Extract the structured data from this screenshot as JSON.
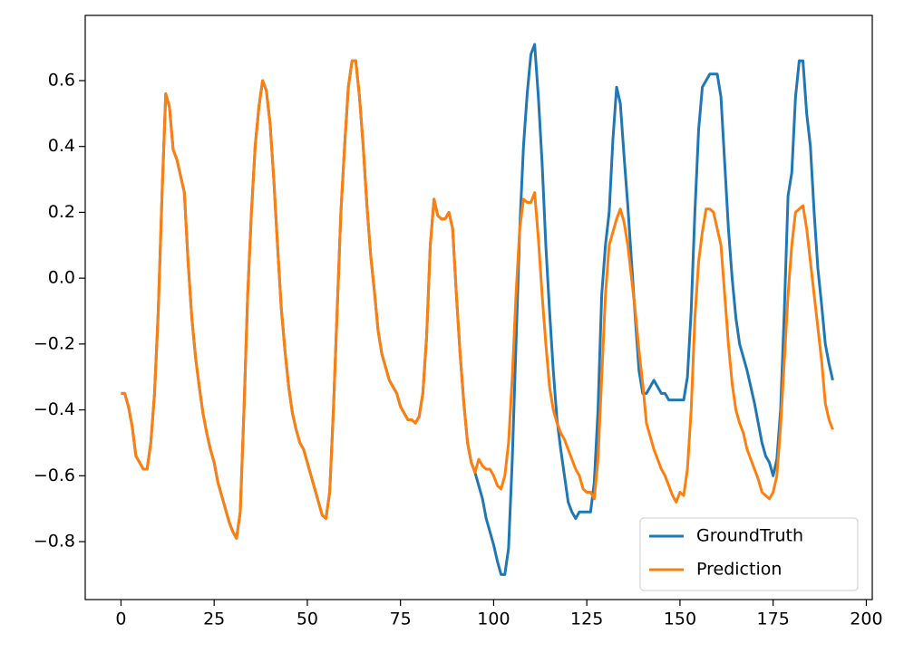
{
  "chart_data": {
    "type": "line",
    "x": [
      0,
      1,
      2,
      3,
      4,
      5,
      6,
      7,
      8,
      9,
      10,
      11,
      12,
      13,
      14,
      15,
      16,
      17,
      18,
      19,
      20,
      21,
      22,
      23,
      24,
      25,
      26,
      27,
      28,
      29,
      30,
      31,
      32,
      33,
      34,
      35,
      36,
      37,
      38,
      39,
      40,
      41,
      42,
      43,
      44,
      45,
      46,
      47,
      48,
      49,
      50,
      51,
      52,
      53,
      54,
      55,
      56,
      57,
      58,
      59,
      60,
      61,
      62,
      63,
      64,
      65,
      66,
      67,
      68,
      69,
      70,
      71,
      72,
      73,
      74,
      75,
      76,
      77,
      78,
      79,
      80,
      81,
      82,
      83,
      84,
      85,
      86,
      87,
      88,
      89,
      90,
      91,
      92,
      93,
      94,
      95,
      96,
      97,
      98,
      99,
      100,
      101,
      102,
      103,
      104,
      105,
      106,
      107,
      108,
      109,
      110,
      111,
      112,
      113,
      114,
      115,
      116,
      117,
      118,
      119,
      120,
      121,
      122,
      123,
      124,
      125,
      126,
      127,
      128,
      129,
      130,
      131,
      132,
      133,
      134,
      135,
      136,
      137,
      138,
      139,
      140,
      141,
      142,
      143,
      144,
      145,
      146,
      147,
      148,
      149,
      150,
      151,
      152,
      153,
      154,
      155,
      156,
      157,
      158,
      159,
      160,
      161,
      162,
      163,
      164,
      165,
      166,
      167,
      168,
      169,
      170,
      171,
      172,
      173,
      174,
      175,
      176,
      177,
      178,
      179,
      180,
      181,
      182,
      183,
      184,
      185,
      186,
      187,
      188,
      189,
      190,
      191
    ],
    "series": [
      {
        "name": "GroundTruth",
        "color": "#1f77b4",
        "values": [
          -0.35,
          -0.35,
          -0.39,
          -0.45,
          -0.54,
          -0.56,
          -0.58,
          -0.58,
          -0.5,
          -0.35,
          -0.1,
          0.25,
          0.56,
          0.52,
          0.39,
          0.36,
          0.31,
          0.26,
          0.05,
          -0.12,
          -0.24,
          -0.33,
          -0.41,
          -0.47,
          -0.52,
          -0.56,
          -0.62,
          -0.66,
          -0.7,
          -0.74,
          -0.77,
          -0.79,
          -0.71,
          -0.4,
          -0.05,
          0.2,
          0.4,
          0.52,
          0.6,
          0.57,
          0.47,
          0.3,
          0.1,
          -0.09,
          -0.22,
          -0.33,
          -0.41,
          -0.46,
          -0.5,
          -0.52,
          -0.56,
          -0.6,
          -0.64,
          -0.68,
          -0.72,
          -0.73,
          -0.65,
          -0.4,
          -0.1,
          0.2,
          0.4,
          0.58,
          0.66,
          0.66,
          0.55,
          0.4,
          0.22,
          0.07,
          -0.04,
          -0.16,
          -0.23,
          -0.27,
          -0.31,
          -0.33,
          -0.35,
          -0.39,
          -0.41,
          -0.43,
          -0.43,
          -0.44,
          -0.42,
          -0.35,
          -0.18,
          0.1,
          0.24,
          0.19,
          0.18,
          0.18,
          0.2,
          0.15,
          -0.05,
          -0.23,
          -0.38,
          -0.5,
          -0.56,
          -0.59,
          -0.63,
          -0.67,
          -0.73,
          -0.77,
          -0.81,
          -0.86,
          -0.9,
          -0.9,
          -0.82,
          -0.55,
          -0.2,
          0.15,
          0.4,
          0.56,
          0.68,
          0.71,
          0.55,
          0.35,
          0.1,
          -0.1,
          -0.28,
          -0.43,
          -0.52,
          -0.6,
          -0.68,
          -0.71,
          -0.73,
          -0.71,
          -0.71,
          -0.71,
          -0.71,
          -0.62,
          -0.4,
          -0.05,
          0.1,
          0.2,
          0.42,
          0.58,
          0.53,
          0.37,
          0.22,
          0.05,
          -0.12,
          -0.28,
          -0.35,
          -0.35,
          -0.33,
          -0.31,
          -0.33,
          -0.35,
          -0.35,
          -0.37,
          -0.37,
          -0.37,
          -0.37,
          -0.37,
          -0.3,
          -0.1,
          0.2,
          0.45,
          0.58,
          0.6,
          0.62,
          0.62,
          0.62,
          0.55,
          0.35,
          0.15,
          0.0,
          -0.12,
          -0.2,
          -0.24,
          -0.28,
          -0.33,
          -0.38,
          -0.44,
          -0.5,
          -0.54,
          -0.56,
          -0.6,
          -0.55,
          -0.4,
          -0.1,
          0.25,
          0.32,
          0.55,
          0.66,
          0.66,
          0.5,
          0.4,
          0.2,
          0.03,
          -0.08,
          -0.2,
          -0.26,
          -0.31
        ]
      },
      {
        "name": "Prediction",
        "color": "#ff7f0e",
        "values": [
          -0.35,
          -0.35,
          -0.39,
          -0.45,
          -0.54,
          -0.56,
          -0.58,
          -0.58,
          -0.5,
          -0.35,
          -0.1,
          0.25,
          0.56,
          0.52,
          0.39,
          0.36,
          0.31,
          0.26,
          0.05,
          -0.12,
          -0.24,
          -0.33,
          -0.41,
          -0.47,
          -0.52,
          -0.56,
          -0.62,
          -0.66,
          -0.7,
          -0.74,
          -0.77,
          -0.79,
          -0.71,
          -0.4,
          -0.05,
          0.2,
          0.4,
          0.52,
          0.6,
          0.57,
          0.47,
          0.3,
          0.1,
          -0.09,
          -0.22,
          -0.33,
          -0.41,
          -0.46,
          -0.5,
          -0.52,
          -0.56,
          -0.6,
          -0.64,
          -0.68,
          -0.72,
          -0.73,
          -0.65,
          -0.4,
          -0.1,
          0.2,
          0.4,
          0.58,
          0.66,
          0.66,
          0.55,
          0.4,
          0.22,
          0.07,
          -0.04,
          -0.16,
          -0.23,
          -0.27,
          -0.31,
          -0.33,
          -0.35,
          -0.39,
          -0.41,
          -0.43,
          -0.43,
          -0.44,
          -0.42,
          -0.35,
          -0.18,
          0.1,
          0.24,
          0.19,
          0.18,
          0.18,
          0.2,
          0.15,
          -0.05,
          -0.23,
          -0.38,
          -0.5,
          -0.56,
          -0.59,
          -0.55,
          -0.57,
          -0.58,
          -0.58,
          -0.6,
          -0.63,
          -0.64,
          -0.6,
          -0.5,
          -0.3,
          -0.05,
          0.15,
          0.24,
          0.23,
          0.23,
          0.26,
          0.12,
          -0.05,
          -0.2,
          -0.33,
          -0.4,
          -0.44,
          -0.47,
          -0.49,
          -0.52,
          -0.55,
          -0.58,
          -0.6,
          -0.64,
          -0.65,
          -0.65,
          -0.67,
          -0.55,
          -0.3,
          -0.05,
          0.1,
          0.14,
          0.18,
          0.21,
          0.17,
          0.1,
          0.0,
          -0.1,
          -0.22,
          -0.32,
          -0.44,
          -0.48,
          -0.52,
          -0.55,
          -0.58,
          -0.6,
          -0.63,
          -0.66,
          -0.68,
          -0.65,
          -0.66,
          -0.58,
          -0.4,
          -0.12,
          0.05,
          0.14,
          0.21,
          0.21,
          0.2,
          0.15,
          0.1,
          -0.05,
          -0.2,
          -0.32,
          -0.4,
          -0.44,
          -0.47,
          -0.52,
          -0.55,
          -0.58,
          -0.61,
          -0.65,
          -0.66,
          -0.67,
          -0.65,
          -0.6,
          -0.45,
          -0.25,
          -0.05,
          0.1,
          0.2,
          0.21,
          0.22,
          0.15,
          0.05,
          -0.05,
          -0.15,
          -0.25,
          -0.38,
          -0.43,
          -0.46
        ]
      }
    ],
    "xlim": [
      -9.6,
      201.6
    ],
    "ylim": [
      -0.976,
      0.798
    ],
    "xticks": [
      0,
      25,
      50,
      75,
      100,
      125,
      150,
      175,
      200
    ],
    "yticks": [
      {
        "value": -0.8,
        "label": "−0.8"
      },
      {
        "value": -0.6,
        "label": "−0.6"
      },
      {
        "value": -0.4,
        "label": "−0.4"
      },
      {
        "value": -0.2,
        "label": "−0.2"
      },
      {
        "value": 0,
        "label": "0.0"
      },
      0.2,
      0.4,
      0.6
    ],
    "legend": "lower right"
  }
}
